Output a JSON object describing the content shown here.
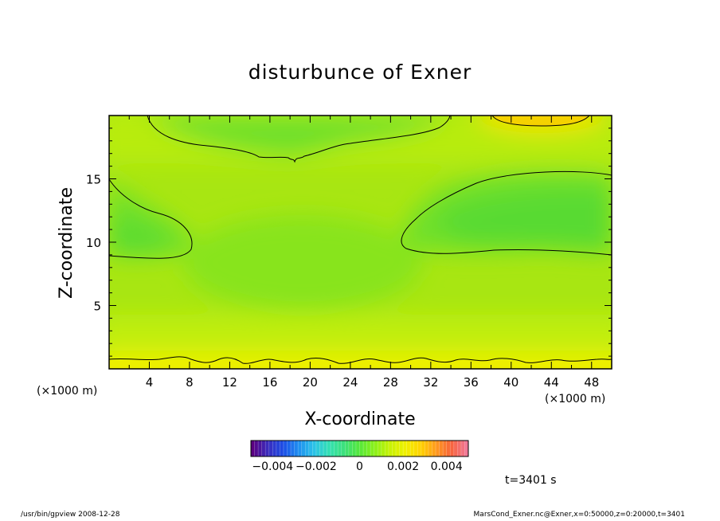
{
  "chart_data": {
    "type": "heatmap",
    "title": "disturbunce of Exner",
    "xlabel": "X-coordinate",
    "ylabel": "Z-coordinate",
    "x_unit": "(×1000 m)",
    "xlim": [
      0,
      50
    ],
    "ylim": [
      0,
      20
    ],
    "xticks": [
      4,
      8,
      12,
      16,
      20,
      24,
      28,
      32,
      36,
      40,
      44,
      48
    ],
    "yticks": [
      5,
      10,
      15
    ],
    "colorbar": {
      "range": [
        -0.005,
        0.005
      ],
      "ticks": [
        -0.004,
        -0.002,
        0,
        0.002,
        0.004
      ],
      "tick_labels": [
        "−0.004",
        "−0.002",
        "0",
        "0.002",
        "0.004"
      ],
      "colors": [
        "#5a0080",
        "#3b2dbe",
        "#1c4de6",
        "#1f8ff0",
        "#2cc2e8",
        "#33e0b3",
        "#3de07a",
        "#55e83a",
        "#8cf019",
        "#c8f205",
        "#f0f000",
        "#ffd200",
        "#ff9b1e",
        "#f7643c",
        "#f07896"
      ]
    },
    "time": "t=3401 s",
    "grid": false,
    "legend": "colorbar bottom-center"
  },
  "footer": {
    "left": "/usr/bin/gpview   2008-12-28",
    "right": "MarsCond_Exner.nc@Exner,x=0:50000,z=0:20000,t=3401"
  }
}
